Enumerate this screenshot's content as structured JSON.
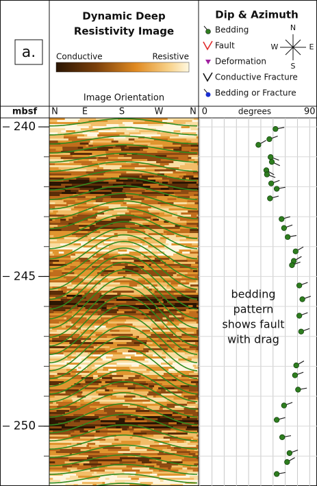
{
  "panel_label": "a.",
  "image_track": {
    "title": [
      "Dynamic Deep",
      "Resistivity Image"
    ],
    "colorbar_labels": [
      "Conductive",
      "Resistive"
    ],
    "orientation_title": "Image Orientation",
    "orientation_labels": [
      "N",
      "E",
      "S",
      "W",
      "N"
    ]
  },
  "chart_data": {
    "type": "tadpole",
    "title": "Dip & Azimuth",
    "ylabel": "mbsf",
    "xlabel": "degrees",
    "compass": [
      "N",
      "W",
      "E",
      "S"
    ],
    "annotation": [
      "bedding",
      "pattern",
      "shows fault",
      "with drag"
    ],
    "series": [
      {
        "name": "Bedding",
        "color": "#2e7d1f",
        "x": [
          62,
          57,
          48,
          58,
          59,
          54.5,
          55,
          58.5,
          63,
          57.5,
          67,
          69,
          72,
          78.5,
          77,
          75.5,
          81.5,
          84,
          81.5,
          83,
          79,
          78,
          80.5,
          69,
          63,
          67.5,
          73.5,
          71.5,
          63
        ],
        "y": [
          240.07,
          240.41,
          240.6,
          241.01,
          241.17,
          241.45,
          241.59,
          241.89,
          242.07,
          242.39,
          243.08,
          243.38,
          243.68,
          244.16,
          244.48,
          244.62,
          245.3,
          245.76,
          246.31,
          246.84,
          247.97,
          248.3,
          248.78,
          249.31,
          249.79,
          250.37,
          250.9,
          251.2,
          251.6
        ],
        "azimuth": [
          80,
          70,
          60,
          110,
          115,
          120,
          110,
          70,
          80,
          75,
          75,
          70,
          80,
          60,
          60,
          70,
          70,
          70,
          70,
          70,
          60,
          70,
          80,
          70,
          75,
          80,
          70,
          60,
          80
        ]
      },
      {
        "name": "Fault",
        "color": "#e02828"
      },
      {
        "name": "Deformation",
        "color": "#a020a0"
      },
      {
        "name": "Conductive Fracture",
        "color": "#111111"
      },
      {
        "name": "Bedding or Fracture",
        "color": "#1a2fd0"
      }
    ],
    "xlim": [
      -1,
      96
    ],
    "xticks": [
      0,
      90
    ],
    "xgrid": [
      0,
      10,
      20,
      30,
      40,
      50,
      60,
      70,
      80,
      90
    ],
    "ylim": [
      239.7,
      252.0
    ],
    "yticks": [
      240,
      245,
      250
    ],
    "yminor_ticks": [
      240,
      241,
      242,
      243,
      244,
      245,
      246,
      247,
      248,
      249,
      250,
      251
    ],
    "y_inverted": true
  }
}
